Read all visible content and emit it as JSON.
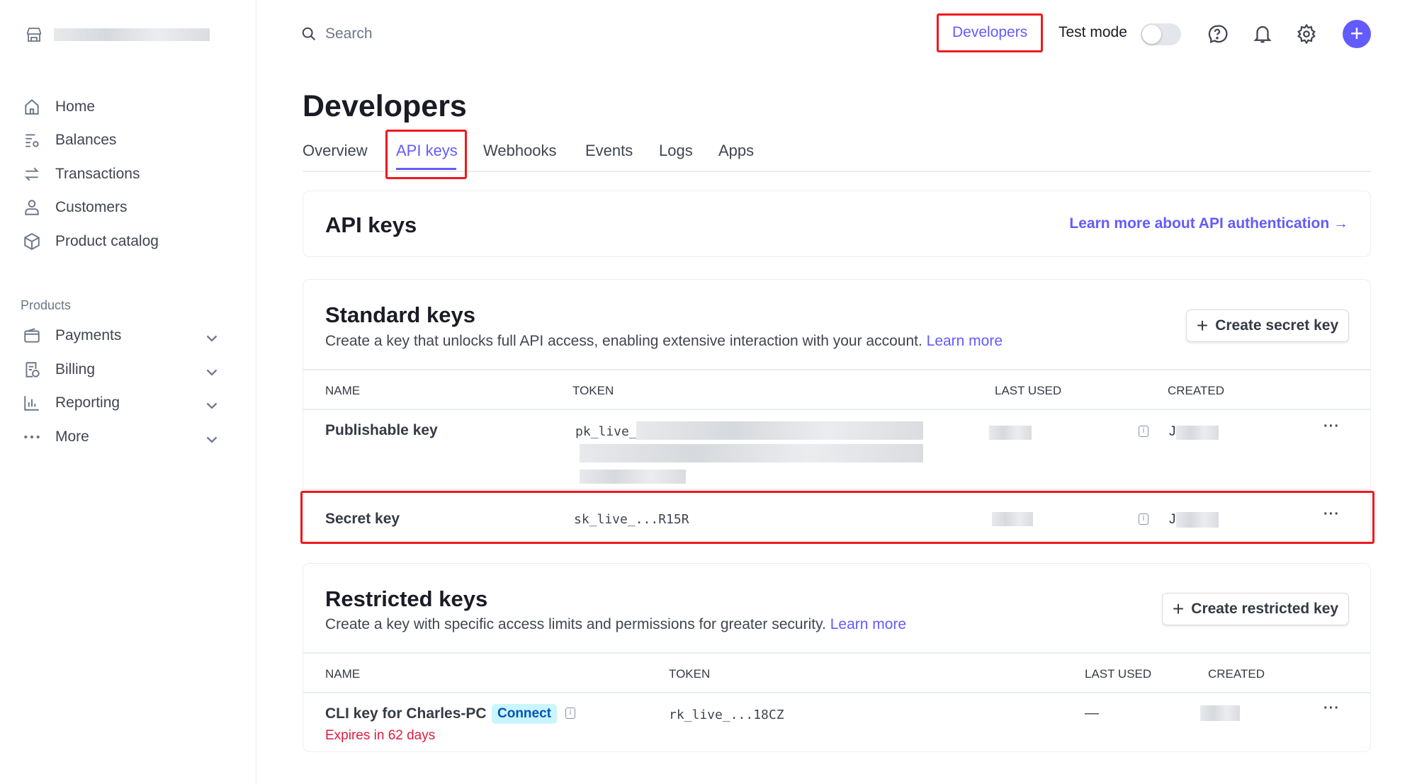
{
  "sidebar": {
    "nav": [
      {
        "label": "Home",
        "icon": "home-icon"
      },
      {
        "label": "Balances",
        "icon": "balances-icon"
      },
      {
        "label": "Transactions",
        "icon": "transactions-icon"
      },
      {
        "label": "Customers",
        "icon": "customers-icon"
      },
      {
        "label": "Product catalog",
        "icon": "product-catalog-icon"
      }
    ],
    "products_label": "Products",
    "products": [
      {
        "label": "Payments",
        "icon": "payments-icon"
      },
      {
        "label": "Billing",
        "icon": "billing-icon"
      },
      {
        "label": "Reporting",
        "icon": "reporting-icon"
      },
      {
        "label": "More",
        "icon": "more-icon"
      }
    ]
  },
  "topbar": {
    "search_placeholder": "Search",
    "developers": "Developers",
    "test_mode": "Test mode",
    "test_mode_on": false
  },
  "page": {
    "title": "Developers",
    "tabs": [
      "Overview",
      "API keys",
      "Webhooks",
      "Events",
      "Logs",
      "Apps"
    ],
    "active_tab": "API keys"
  },
  "api_keys_card": {
    "title": "API keys",
    "link": "Learn more about API authentication →"
  },
  "standard": {
    "title": "Standard keys",
    "desc": "Create a key that unlocks full API access, enabling extensive interaction with your account.",
    "learn_more": "Learn more",
    "button": "Create secret key",
    "headers": [
      "NAME",
      "TOKEN",
      "LAST USED",
      "CREATED"
    ],
    "rows": [
      {
        "name": "Publishable key",
        "token": "pk_live_",
        "created": "J"
      },
      {
        "name": "Secret key",
        "token": "sk_live_...R15R",
        "created": "J"
      }
    ]
  },
  "restricted": {
    "title": "Restricted keys",
    "desc": "Create a key with specific access limits and permissions for greater security.",
    "learn_more": "Learn more",
    "button": "Create restricted key",
    "headers": [
      "NAME",
      "TOKEN",
      "LAST USED",
      "CREATED"
    ],
    "rows": [
      {
        "name": "CLI key for Charles-PC",
        "badge": "Connect",
        "expires": "Expires in 62 days",
        "token": "rk_live_...18CZ",
        "last_used": "—"
      }
    ]
  },
  "colors": {
    "accent": "#635bff",
    "highlight": "#f0191e",
    "danger": "#df1b41",
    "badge_bg": "#cbf5fd"
  }
}
